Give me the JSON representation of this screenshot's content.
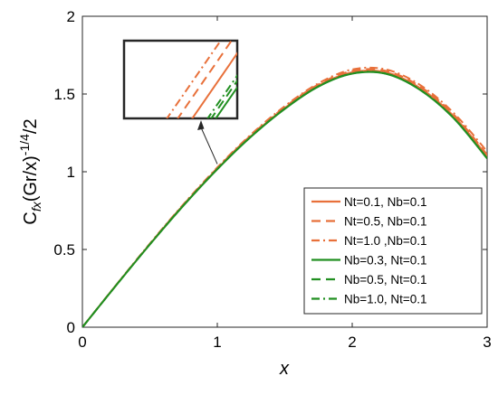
{
  "chart_data": {
    "type": "line",
    "xlabel": "x",
    "ylabel": "C_{fx}(Gr/x)^{-1/4}/2",
    "ylabel_parts": {
      "base": "C",
      "sub": "fx",
      "mid": "(Gr/x)",
      "sup": "-1/4",
      "tail": "/2"
    },
    "xlim": [
      0,
      3
    ],
    "ylim": [
      0,
      2
    ],
    "xticks": [
      "0",
      "1",
      "2",
      "3"
    ],
    "yticks": [
      "0",
      "0.5",
      "1",
      "1.5",
      "2"
    ],
    "grid": false,
    "legend_position": "bottom-right",
    "x": [
      0,
      0.25,
      0.5,
      0.75,
      1.0,
      1.25,
      1.5,
      1.75,
      2.0,
      2.25,
      2.5,
      2.75,
      3.0
    ],
    "series": [
      {
        "name": "Nt=0.1, Nb=0.1",
        "color": "#e8703a",
        "dash": "solid",
        "values": [
          0,
          0.27,
          0.534,
          0.786,
          1.02,
          1.23,
          1.41,
          1.555,
          1.64,
          1.64,
          1.54,
          1.36,
          1.1
        ]
      },
      {
        "name": "Nt=0.5, Nb=0.1",
        "color": "#e8703a",
        "dash": "dashed",
        "values": [
          0,
          0.271,
          0.536,
          0.789,
          1.024,
          1.235,
          1.416,
          1.562,
          1.649,
          1.649,
          1.55,
          1.37,
          1.11
        ]
      },
      {
        "name": "Nt=1.0 ,Nb=0.1",
        "color": "#e8703a",
        "dash": "dashdot",
        "values": [
          0,
          0.272,
          0.538,
          0.792,
          1.028,
          1.24,
          1.422,
          1.569,
          1.658,
          1.658,
          1.56,
          1.38,
          1.13
        ]
      },
      {
        "name": "Nb=0.3, Nt=0.1",
        "color": "#218f21",
        "dash": "solid",
        "values": [
          0,
          0.269,
          0.532,
          0.783,
          1.016,
          1.225,
          1.404,
          1.548,
          1.631,
          1.63,
          1.528,
          1.346,
          1.085
        ]
      },
      {
        "name": "Nb=0.5, Nt=0.1",
        "color": "#218f21",
        "dash": "dashed",
        "values": [
          0,
          0.269,
          0.533,
          0.784,
          1.017,
          1.226,
          1.405,
          1.549,
          1.632,
          1.631,
          1.529,
          1.347,
          1.086
        ]
      },
      {
        "name": "Nb=1.0, Nt=0.1",
        "color": "#218f21",
        "dash": "dashdot",
        "values": [
          0,
          0.27,
          0.534,
          0.785,
          1.018,
          1.227,
          1.406,
          1.55,
          1.633,
          1.632,
          1.53,
          1.348,
          1.087
        ]
      }
    ],
    "inset": {
      "type": "zoom",
      "target_x": 1.0,
      "target_y": 1.05
    }
  }
}
